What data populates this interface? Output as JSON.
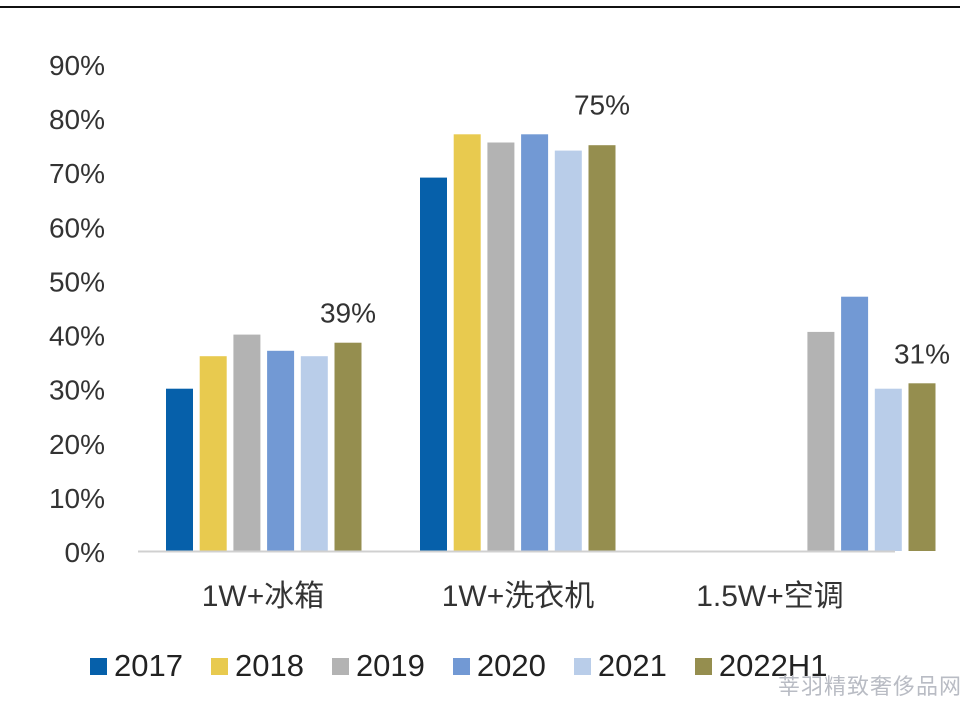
{
  "chart_data": {
    "type": "bar",
    "categories": [
      "1W+冰箱",
      "1W+洗衣机",
      "1.5W+空调"
    ],
    "series": [
      {
        "name": "2017",
        "color": "#0660aa",
        "values": [
          0.3,
          0.69,
          null
        ]
      },
      {
        "name": "2018",
        "color": "#e8ca4f",
        "values": [
          0.36,
          0.77,
          null
        ]
      },
      {
        "name": "2019",
        "color": "#b3b3b3",
        "values": [
          0.4,
          0.755,
          0.405
        ]
      },
      {
        "name": "2020",
        "color": "#7299d4",
        "values": [
          0.37,
          0.77,
          0.47
        ]
      },
      {
        "name": "2021",
        "color": "#b9cde9",
        "values": [
          0.36,
          0.74,
          0.3
        ]
      },
      {
        "name": "2022H1",
        "color": "#958e4f",
        "values": [
          0.385,
          0.75,
          0.31
        ]
      }
    ],
    "ylim": [
      0,
      0.9
    ],
    "yticks": [
      "0%",
      "10%",
      "20%",
      "30%",
      "40%",
      "50%",
      "60%",
      "70%",
      "80%",
      "90%"
    ],
    "annotations": [
      "39%",
      "75%",
      "31%"
    ],
    "grid": false,
    "legend_position": "bottom"
  },
  "watermark": "莘羽精致奢侈品网"
}
